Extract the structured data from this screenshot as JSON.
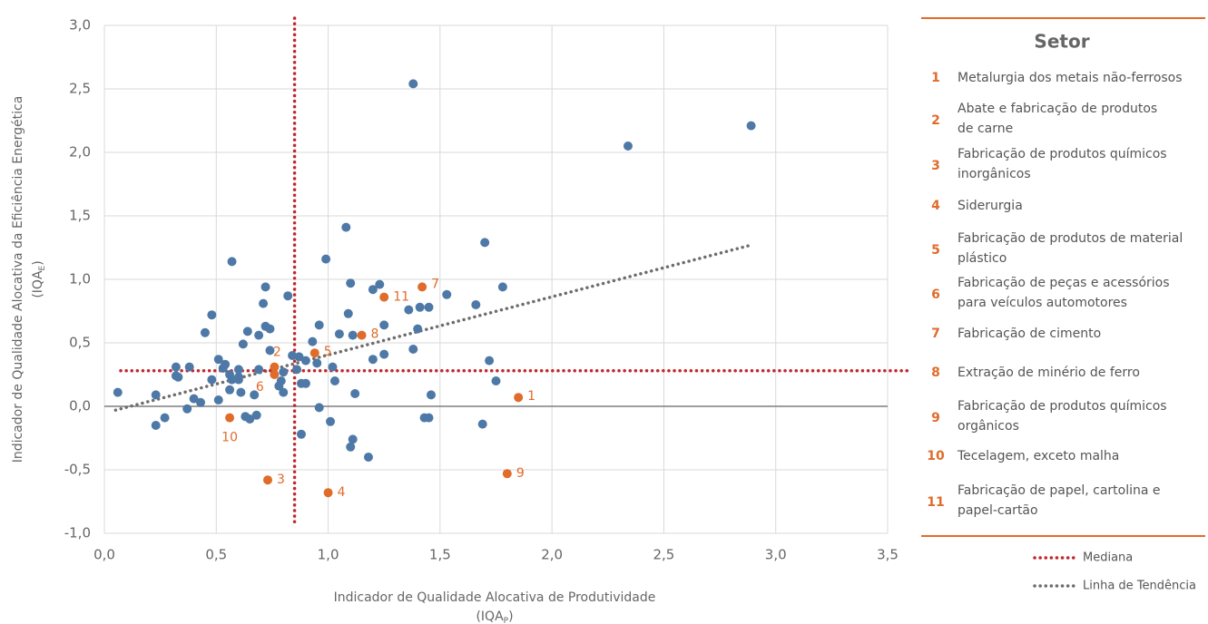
{
  "chart_data": {
    "type": "scatter",
    "xlabel": {
      "line1": "Indicador de Qualidade Alocativa de Produtividade",
      "symbol": "(IQA",
      "subscript": "P",
      "close": ")"
    },
    "ylabel": {
      "line1": "Indicador de Qualidade Alocativa da Eficiência Energética",
      "symbol": "(IQA",
      "subscript": "E",
      "close": ")"
    },
    "xlim": [
      0,
      3.5
    ],
    "xticks": [
      {
        "value": 0,
        "label": "0,0"
      },
      {
        "value": 0.5,
        "label": "0,5"
      },
      {
        "value": 1,
        "label": "1,0"
      },
      {
        "value": 1.5,
        "label": "1,5"
      },
      {
        "value": 2,
        "label": "2,0"
      },
      {
        "value": 2.5,
        "label": "2,5"
      },
      {
        "value": 3,
        "label": "3,0"
      },
      {
        "value": 3.5,
        "label": "3,5"
      }
    ],
    "ylim": [
      -1,
      3
    ],
    "yticks": [
      {
        "value": -1,
        "label": "-1,0"
      },
      {
        "value": -0.5,
        "label": "-0,5"
      },
      {
        "value": 0,
        "label": "0,0"
      },
      {
        "value": 0.5,
        "label": "0,5"
      },
      {
        "value": 1,
        "label": "1,0"
      },
      {
        "value": 1.5,
        "label": "1,5"
      },
      {
        "value": 2,
        "label": "2,0"
      },
      {
        "value": 2.5,
        "label": "2,5"
      },
      {
        "value": 3,
        "label": "3,0"
      }
    ],
    "grid": true,
    "series": [
      {
        "color": "#4e79a7",
        "x": [
          0.06,
          0.23,
          0.23,
          0.27,
          0.32,
          0.32,
          0.33,
          0.37,
          0.38,
          0.4,
          0.43,
          0.45,
          0.48,
          0.48,
          0.51,
          0.51,
          0.53,
          0.54,
          0.57,
          0.56,
          0.57,
          0.56,
          0.6,
          0.6,
          0.61,
          0.6,
          0.62,
          0.64,
          0.63,
          0.65,
          0.67,
          0.68,
          0.69,
          0.69,
          0.71,
          0.72,
          0.72,
          0.74,
          0.74,
          0.78,
          0.79,
          0.8,
          0.8,
          0.82,
          0.84,
          0.86,
          0.87,
          0.88,
          0.88,
          0.9,
          0.9,
          0.93,
          0.95,
          0.96,
          0.96,
          0.99,
          1.01,
          1.02,
          1.03,
          1.05,
          1.08,
          1.09,
          1.1,
          1.1,
          1.11,
          1.11,
          1.12,
          1.18,
          1.2,
          1.2,
          1.23,
          1.25,
          1.25,
          1.36,
          1.38,
          1.38,
          1.4,
          1.41,
          1.43,
          1.45,
          1.45,
          1.46,
          1.53,
          1.66,
          1.69,
          1.7,
          1.72,
          1.75,
          1.78,
          2.34,
          2.89
        ],
        "y": [
          0.11,
          -0.15,
          0.09,
          -0.09,
          0.24,
          0.31,
          0.23,
          -0.02,
          0.31,
          0.06,
          0.03,
          0.58,
          0.72,
          0.21,
          0.05,
          0.37,
          0.3,
          0.33,
          1.14,
          0.25,
          0.21,
          0.13,
          0.29,
          0.21,
          0.11,
          0.23,
          0.49,
          0.59,
          -0.08,
          -0.1,
          0.09,
          -0.07,
          0.29,
          0.56,
          0.81,
          0.94,
          0.63,
          0.61,
          0.44,
          0.16,
          0.2,
          0.27,
          0.11,
          0.87,
          0.4,
          0.29,
          0.39,
          -0.22,
          0.18,
          0.18,
          0.36,
          0.51,
          0.34,
          0.64,
          -0.01,
          1.16,
          -0.12,
          0.31,
          0.2,
          0.57,
          1.41,
          0.73,
          0.97,
          -0.32,
          -0.26,
          0.56,
          0.1,
          -0.4,
          0.92,
          0.37,
          0.96,
          0.64,
          0.41,
          0.76,
          0.45,
          2.54,
          0.61,
          0.78,
          -0.09,
          -0.09,
          0.78,
          0.09,
          0.88,
          0.8,
          -0.14,
          1.29,
          0.36,
          0.2,
          0.94,
          2.05,
          2.21
        ]
      },
      {
        "color": "#e06b2a",
        "x": [
          1.85,
          0.76,
          0.73,
          1.0,
          0.94,
          0.76,
          1.42,
          1.15,
          1.8,
          0.56,
          1.25
        ],
        "y": [
          0.07,
          0.31,
          -0.58,
          -0.68,
          0.42,
          0.25,
          0.94,
          0.56,
          -0.53,
          -0.09,
          0.86
        ]
      }
    ],
    "median": {
      "x": 0.85,
      "y": 0.28,
      "color": "#c0282d"
    },
    "trend": {
      "x": [
        0.05,
        2.89
      ],
      "y": [
        -0.03,
        1.27
      ],
      "color": "#6d6d6d"
    },
    "legend_title": "Setor",
    "sectors": [
      {
        "number": 1,
        "name": [
          "Metalurgia dos metais não-ferrosos"
        ]
      },
      {
        "number": 2,
        "name": [
          "Abate e fabricação de produtos",
          "de carne"
        ]
      },
      {
        "number": 3,
        "name": [
          "Fabricação de produtos químicos",
          "inorgânicos"
        ]
      },
      {
        "number": 4,
        "name": [
          "Siderurgia"
        ]
      },
      {
        "number": 5,
        "name": [
          "Fabricação de produtos de material",
          "plástico"
        ]
      },
      {
        "number": 6,
        "name": [
          "Fabricação de peças e acessórios",
          "para veículos automotores"
        ]
      },
      {
        "number": 7,
        "name": [
          "Fabricação de cimento"
        ]
      },
      {
        "number": 8,
        "name": [
          "Extração de minério de ferro"
        ]
      },
      {
        "number": 9,
        "name": [
          "Fabricação de produtos químicos",
          "orgânicos"
        ]
      },
      {
        "number": 10,
        "name": [
          "Tecelagem, exceto malha"
        ]
      },
      {
        "number": 11,
        "name": [
          "Fabricação de papel, cartolina e",
          "papel-cartão"
        ]
      }
    ],
    "legend": {
      "median": "Mediana",
      "trend": "Linha de Tendência"
    }
  }
}
